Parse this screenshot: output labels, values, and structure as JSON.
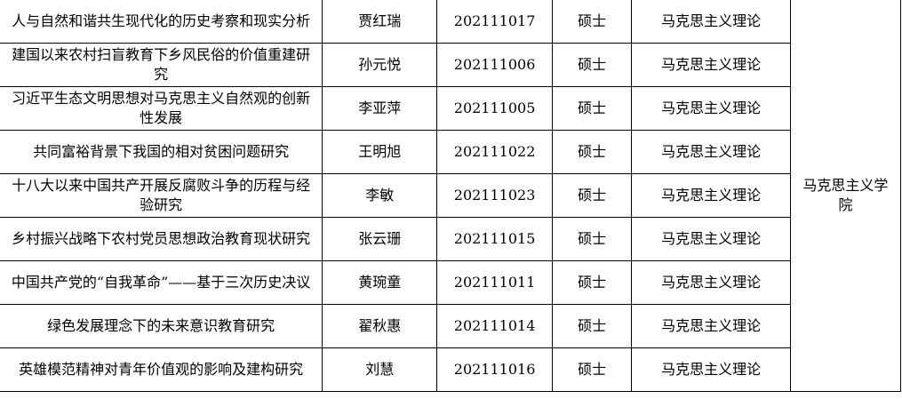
{
  "college": "马克思主义学院",
  "rows": [
    {
      "title": "人与自然和谐共生现代化的历史考察和现实分析",
      "name": "贾红瑞",
      "id": "202111017",
      "degree": "硕士",
      "major": "马克思主义理论"
    },
    {
      "title": "建国以来农村扫盲教育下乡风民俗的价值重建研究",
      "name": "孙元悦",
      "id": "202111006",
      "degree": "硕士",
      "major": "马克思主义理论"
    },
    {
      "title": "习近平生态文明思想对马克思主义自然观的创新性发展",
      "name": "李亚萍",
      "id": "202111005",
      "degree": "硕士",
      "major": "马克思主义理论"
    },
    {
      "title": "共同富裕背景下我国的相对贫困问题研究",
      "name": "王明旭",
      "id": "202111022",
      "degree": "硕士",
      "major": "马克思主义理论"
    },
    {
      "title": "十八大以来中国共产开展反腐败斗争的历程与经验研究",
      "name": "李敏",
      "id": "202111023",
      "degree": "硕士",
      "major": "马克思主义理论"
    },
    {
      "title": "乡村振兴战略下农村党员思想政治教育现状研究",
      "name": "张云珊",
      "id": "202111015",
      "degree": "硕士",
      "major": "马克思主义理论"
    },
    {
      "title": "中国共产党的“自我革命”——基于三次历史决议",
      "name": "黄琬童",
      "id": "202111011",
      "degree": "硕士",
      "major": "马克思主义理论"
    },
    {
      "title": "绿色发展理念下的未来意识教育研究",
      "name": "翟秋惠",
      "id": "202111014",
      "degree": "硕士",
      "major": "马克思主义理论"
    },
    {
      "title": "英雄模范精神对青年价值观的影响及建构研究",
      "name": "刘慧",
      "id": "202111016",
      "degree": "硕士",
      "major": "马克思主义理论"
    }
  ]
}
